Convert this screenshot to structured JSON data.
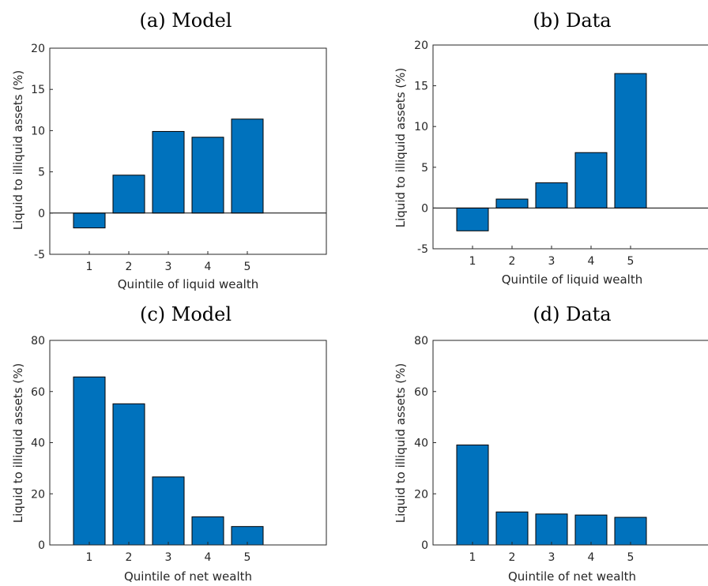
{
  "bar_color": "#0072BD",
  "chart_data": [
    {
      "type": "bar",
      "title": "(a) Model",
      "xlabel": "Quintile of liquid wealth",
      "ylabel": "Liquid to illiquid assets (%)",
      "categories": [
        "1",
        "2",
        "3",
        "4",
        "5"
      ],
      "values": [
        -1.8,
        4.6,
        9.9,
        9.2,
        11.4
      ],
      "ylim": [
        -5,
        20
      ],
      "yticks": [
        "-5",
        "0",
        "5",
        "10",
        "15",
        "20"
      ],
      "zero_line": true,
      "grid": false
    },
    {
      "type": "bar",
      "title": "(b) Data",
      "xlabel": "Quintile of liquid wealth",
      "ylabel": "Liquid to illiquid assets (%)",
      "categories": [
        "1",
        "2",
        "3",
        "4",
        "5"
      ],
      "values": [
        -2.8,
        1.1,
        3.1,
        6.8,
        16.5
      ],
      "ylim": [
        -5,
        20
      ],
      "yticks": [
        "-5",
        "0",
        "5",
        "10",
        "15",
        "20"
      ],
      "zero_line": true,
      "grid": false
    },
    {
      "type": "bar",
      "title": "(c) Model",
      "xlabel": "Quintile of net wealth",
      "ylabel": "Liquid to illiquid assets (%)",
      "categories": [
        "1",
        "2",
        "3",
        "4",
        "5"
      ],
      "values": [
        65.7,
        55.2,
        26.6,
        11.0,
        7.2
      ],
      "ylim": [
        0,
        80
      ],
      "yticks": [
        "0",
        "20",
        "40",
        "60",
        "80"
      ],
      "zero_line": false,
      "grid": false
    },
    {
      "type": "bar",
      "title": "(d) Data",
      "xlabel": "Quintile of net wealth",
      "ylabel": "Liquid to illiquid assets (%)",
      "categories": [
        "1",
        "2",
        "3",
        "4",
        "5"
      ],
      "values": [
        39.1,
        12.9,
        12.1,
        11.7,
        10.8
      ],
      "ylim": [
        0,
        80
      ],
      "yticks": [
        "0",
        "20",
        "40",
        "60",
        "80"
      ],
      "zero_line": false,
      "grid": false
    }
  ]
}
